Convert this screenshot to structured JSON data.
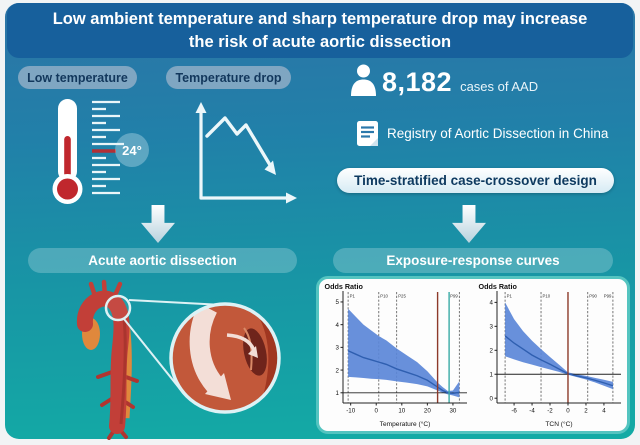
{
  "title": {
    "line1": "Low ambient temperature and sharp temperature drop may increase",
    "line2": "the risk of acute aortic dissection"
  },
  "exposures": {
    "low_temperature_label": "Low temperature",
    "temperature_drop_label": "Temperature drop",
    "thermometer_value": "24°"
  },
  "study": {
    "cases_number": "8,182",
    "cases_label": "cases of AAD",
    "registry_label": "Registry of Aortic Dissection in China",
    "design_label": "Time-stratified case-crossover design"
  },
  "outcome": {
    "label": "Acute aortic dissection"
  },
  "results": {
    "curves_label": "Exposure-response curves"
  },
  "colors": {
    "banner": "#17609c",
    "bg_top": "#2d74a6",
    "bg_bottom": "#13aba5",
    "ci_band": "#5b87d8",
    "or_curve": "#2f5fb0",
    "case_temperature_line": "#8d3a2a",
    "minimum_risk_line": "#3aaba6"
  },
  "chart_data": [
    {
      "type": "line",
      "title": "Odds Ratio",
      "ylabel": "Odds Ratio",
      "xlabel": "Temperature (°C)",
      "xlim": [
        -13,
        35.5
      ],
      "ylim": [
        0.55,
        5.35
      ],
      "xticks": [
        -10,
        0,
        10,
        20,
        30
      ],
      "yticks": [
        1,
        2,
        3,
        4,
        5
      ],
      "reference_or": 1,
      "band_color": "#5b87d8",
      "curve_color": "#2f5fb0",
      "percentile_lines": [
        {
          "label": "P1",
          "x": -11
        },
        {
          "label": "P10",
          "x": 1
        },
        {
          "label": "P25",
          "x": 8
        },
        {
          "label": "P99",
          "x": 32.5
        }
      ],
      "vlines": [
        {
          "x": 24,
          "color": "#8d3a2a"
        },
        {
          "x": 28.5,
          "color": "#3aaba6"
        }
      ],
      "series": {
        "x": [
          -11,
          -8,
          -5,
          -2,
          1,
          4,
          8,
          12,
          16,
          20,
          24,
          26,
          28,
          30,
          32.5
        ],
        "or": [
          2.85,
          2.7,
          2.55,
          2.45,
          2.35,
          2.25,
          2.05,
          1.9,
          1.75,
          1.55,
          1.25,
          1.1,
          1.0,
          0.97,
          1.02
        ],
        "ci_low": [
          1.7,
          1.68,
          1.65,
          1.62,
          1.6,
          1.57,
          1.5,
          1.45,
          1.38,
          1.28,
          1.1,
          1.0,
          0.93,
          0.88,
          0.8
        ],
        "ci_high": [
          4.7,
          4.35,
          4.0,
          3.75,
          3.5,
          3.3,
          2.95,
          2.65,
          2.35,
          1.95,
          1.45,
          1.25,
          1.08,
          1.1,
          1.5
        ]
      }
    },
    {
      "type": "line",
      "title": "Odds Ratio",
      "ylabel": "Odds Ratio",
      "xlabel": "TCN (°C)",
      "xlim": [
        -7.9,
        5.9
      ],
      "ylim": [
        -0.2,
        4.35
      ],
      "xticks": [
        -6,
        -4,
        -2,
        0,
        2,
        4
      ],
      "yticks": [
        0,
        1,
        2,
        3,
        4
      ],
      "reference_or": 1,
      "band_color": "#5b87d8",
      "curve_color": "#2f5fb0",
      "percentile_lines": [
        {
          "label": "P1",
          "x": -7
        },
        {
          "label": "P10",
          "x": -3
        },
        {
          "label": "P90",
          "x": 2.2
        },
        {
          "label": "P99",
          "x": 5
        }
      ],
      "vlines": [
        {
          "x": 0,
          "color": "#8d3a2a"
        }
      ],
      "series": {
        "x": [
          -7,
          -6,
          -5,
          -4,
          -3,
          -2,
          -1,
          0,
          1,
          2,
          3,
          4,
          5
        ],
        "or": [
          2.6,
          2.3,
          2.05,
          1.8,
          1.6,
          1.42,
          1.22,
          1.02,
          0.93,
          0.85,
          0.75,
          0.64,
          0.52
        ],
        "ci_low": [
          1.75,
          1.62,
          1.5,
          1.4,
          1.3,
          1.2,
          1.1,
          0.98,
          0.88,
          0.78,
          0.66,
          0.52,
          0.38
        ],
        "ci_high": [
          4.0,
          3.3,
          2.8,
          2.4,
          2.05,
          1.72,
          1.4,
          1.08,
          1.0,
          0.93,
          0.85,
          0.77,
          0.68
        ]
      }
    }
  ]
}
